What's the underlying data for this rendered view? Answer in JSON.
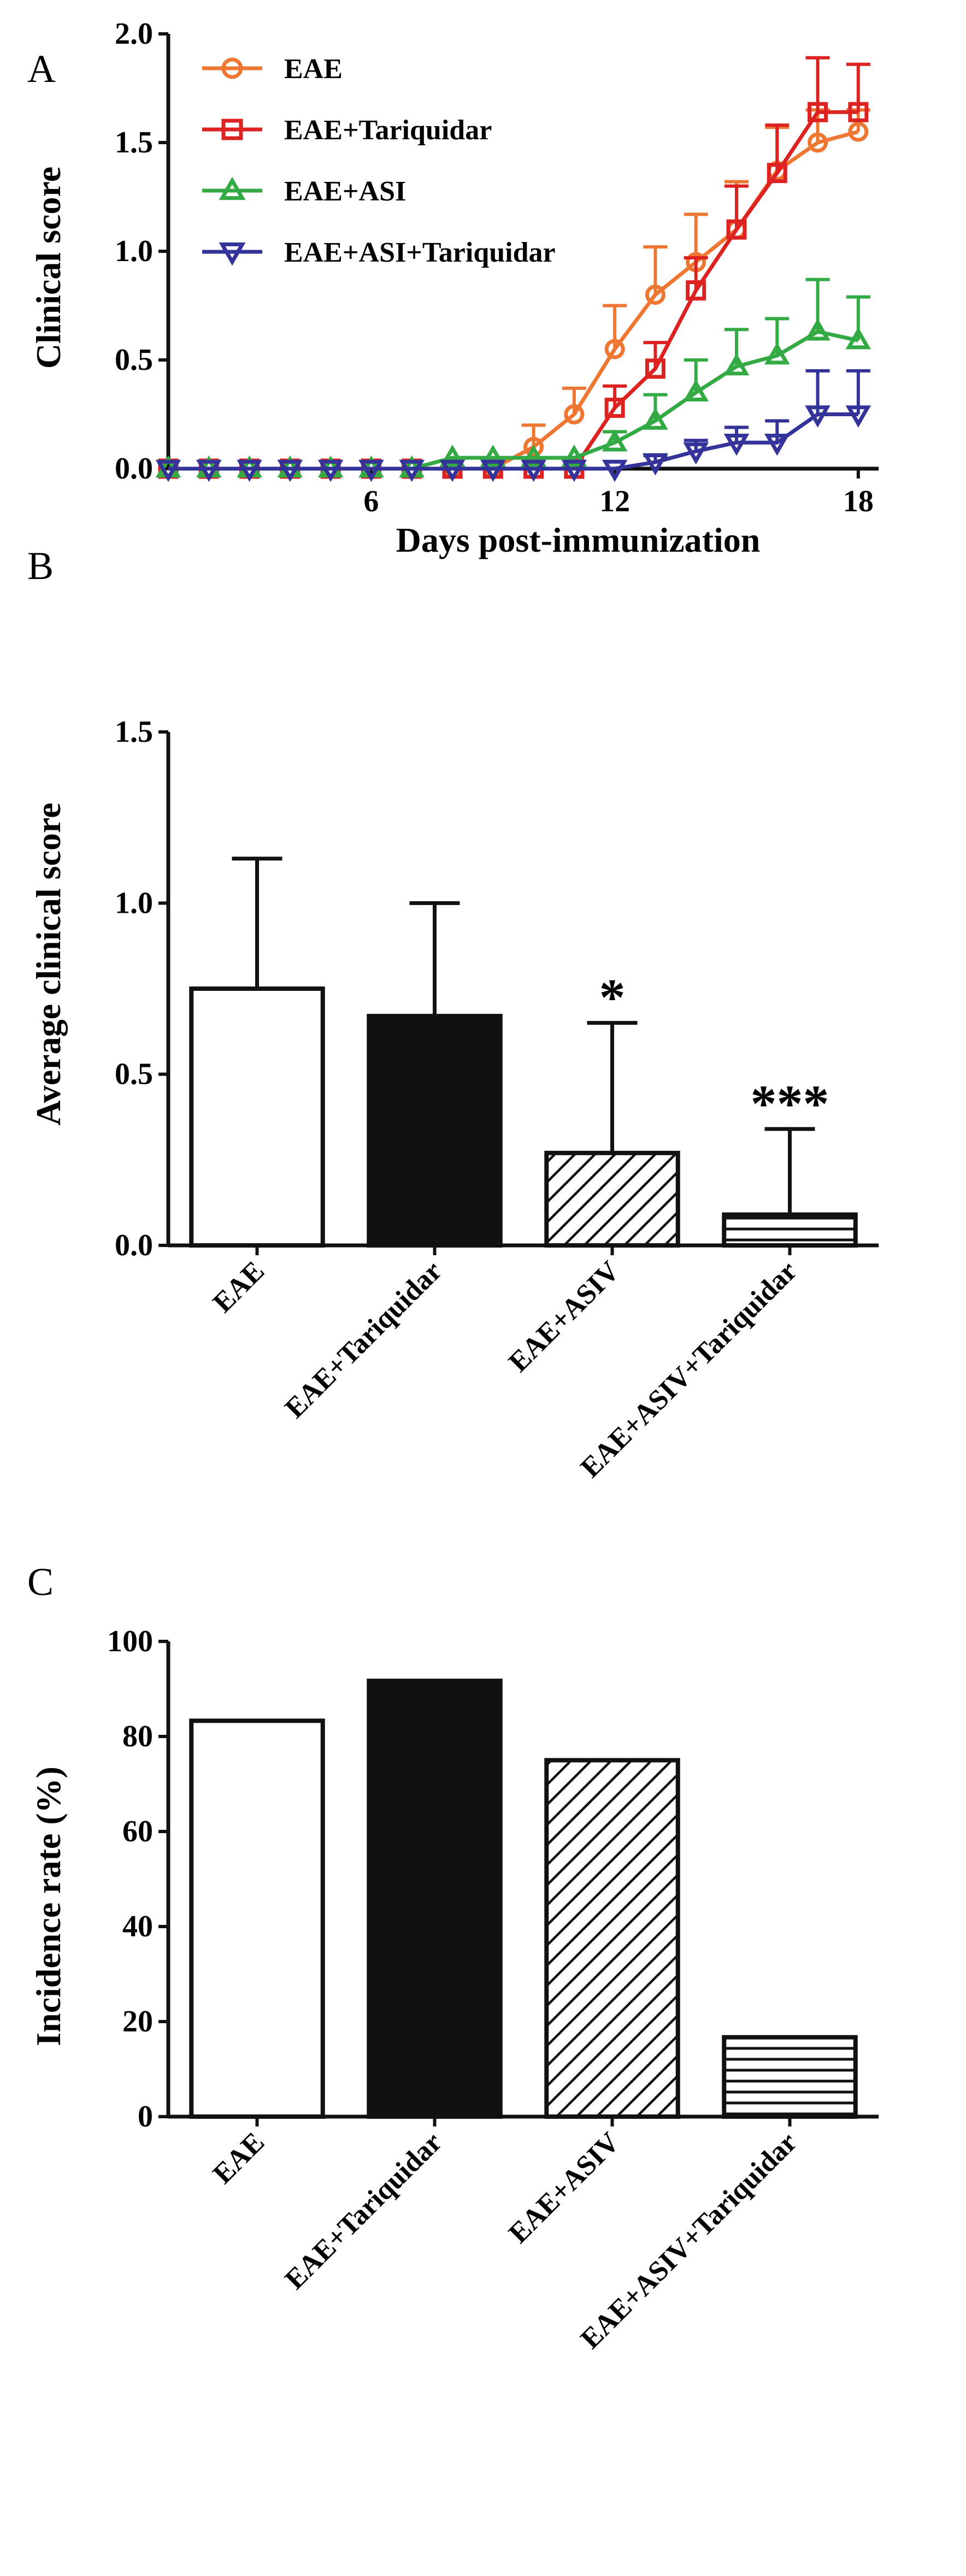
{
  "chart_data": [
    {
      "panel": "A",
      "type": "line",
      "xlabel": "Days post-immunization",
      "ylabel": "Clinical score",
      "xlim": [
        1,
        18.5
      ],
      "ylim": [
        0,
        2.0
      ],
      "xticks": [
        6,
        12,
        18
      ],
      "yticks": [
        0.0,
        0.5,
        1.0,
        1.5,
        2.0
      ],
      "ytick_labels": [
        "0.0",
        "0.5",
        "1.0",
        "1.5",
        "2.0"
      ],
      "legend_position": "top-left",
      "series": [
        {
          "name": "EAE",
          "color": "#ee7733",
          "marker": "circle",
          "x": [
            1,
            2,
            3,
            4,
            5,
            6,
            7,
            8,
            9,
            10,
            11,
            12,
            13,
            14,
            15,
            16,
            17,
            18
          ],
          "y": [
            0,
            0,
            0,
            0,
            0,
            0,
            0,
            0,
            0,
            0.1,
            0.25,
            0.55,
            0.8,
            0.95,
            1.1,
            1.37,
            1.5,
            1.55
          ],
          "err": [
            0,
            0,
            0,
            0,
            0,
            0,
            0,
            0,
            0,
            0.1,
            0.12,
            0.2,
            0.22,
            0.22,
            0.22,
            0.2,
            0.15,
            0.1
          ]
        },
        {
          "name": "EAE+Tariquidar",
          "color": "#dd2222",
          "marker": "square",
          "x": [
            1,
            2,
            3,
            4,
            5,
            6,
            7,
            8,
            9,
            10,
            11,
            12,
            13,
            14,
            15,
            16,
            17,
            18
          ],
          "y": [
            0,
            0,
            0,
            0,
            0,
            0,
            0,
            0,
            0,
            0,
            0,
            0.28,
            0.46,
            0.82,
            1.1,
            1.36,
            1.64,
            1.64
          ],
          "err": [
            0,
            0,
            0,
            0,
            0,
            0,
            0,
            0,
            0,
            0,
            0,
            0.1,
            0.12,
            0.15,
            0.2,
            0.22,
            0.25,
            0.22
          ]
        },
        {
          "name": "EAE+ASI",
          "color": "#33aa44",
          "marker": "triangle-up",
          "x": [
            1,
            2,
            3,
            4,
            5,
            6,
            7,
            8,
            9,
            10,
            11,
            12,
            13,
            14,
            15,
            16,
            17,
            18
          ],
          "y": [
            0,
            0,
            0,
            0,
            0,
            0,
            0,
            0.05,
            0.05,
            0.05,
            0.05,
            0.12,
            0.22,
            0.35,
            0.47,
            0.52,
            0.63,
            0.59
          ],
          "err": [
            0,
            0,
            0,
            0,
            0,
            0,
            0,
            0,
            0,
            0,
            0,
            0.05,
            0.12,
            0.15,
            0.17,
            0.17,
            0.24,
            0.2
          ]
        },
        {
          "name": "EAE+ASI+Tariquidar",
          "color": "#333399",
          "marker": "triangle-down",
          "x": [
            1,
            2,
            3,
            4,
            5,
            6,
            7,
            8,
            9,
            10,
            11,
            12,
            13,
            14,
            15,
            16,
            17,
            18
          ],
          "y": [
            0,
            0,
            0,
            0,
            0,
            0,
            0,
            0,
            0,
            0,
            0,
            0,
            0.03,
            0.08,
            0.12,
            0.12,
            0.25,
            0.25
          ],
          "err": [
            0,
            0,
            0,
            0,
            0,
            0,
            0,
            0,
            0,
            0,
            0,
            0,
            0.03,
            0.05,
            0.07,
            0.1,
            0.2,
            0.2
          ]
        }
      ]
    },
    {
      "panel": "B",
      "type": "bar",
      "ylabel": "Average clinical score",
      "ylim": [
        0,
        1.5
      ],
      "yticks": [
        0.0,
        0.5,
        1.0,
        1.5
      ],
      "ytick_labels": [
        "0.0",
        "0.5",
        "1.0",
        "1.5"
      ],
      "categories": [
        "EAE",
        "EAE+Tariquidar",
        "EAE+ASIV",
        "EAE+ASIV+Tariquidar"
      ],
      "values": [
        0.75,
        0.67,
        0.27,
        0.09
      ],
      "err": [
        0.38,
        0.33,
        0.38,
        0.25
      ],
      "fills": [
        "white",
        "black",
        "diagonal",
        "horizontal"
      ],
      "significance": [
        "",
        "",
        "*",
        "***"
      ]
    },
    {
      "panel": "C",
      "type": "bar",
      "ylabel": "Incidence rate (%)",
      "ylim": [
        0,
        100
      ],
      "yticks": [
        0,
        20,
        40,
        60,
        80,
        100
      ],
      "ytick_labels": [
        "0",
        "20",
        "40",
        "60",
        "80",
        "100"
      ],
      "categories": [
        "EAE",
        "EAE+Tariquidar",
        "EAE+ASIV",
        "EAE+ASIV+Tariquidar"
      ],
      "values": [
        83.3,
        91.7,
        75,
        16.7
      ],
      "fills": [
        "white",
        "black",
        "diagonal",
        "horizontal"
      ]
    }
  ]
}
